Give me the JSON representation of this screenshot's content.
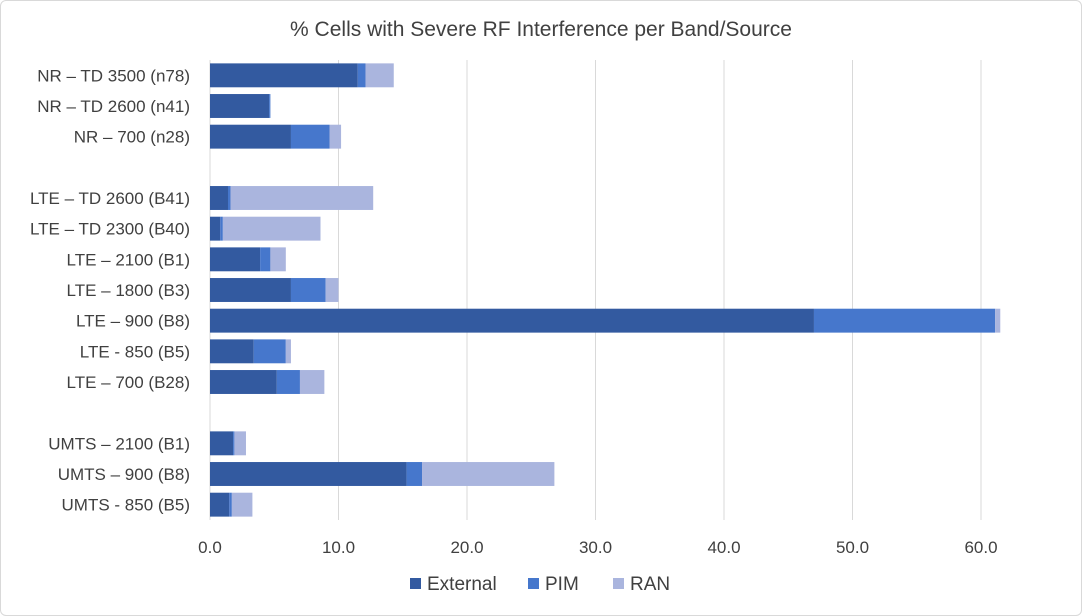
{
  "chart_data": {
    "type": "bar",
    "orientation": "horizontal",
    "stacked": true,
    "title": "% Cells with Severe RF Interference per Band/Source",
    "xlabel": "",
    "ylabel": "",
    "xlim": [
      0,
      60
    ],
    "x_ticks": [
      "0.0",
      "10.0",
      "20.0",
      "30.0",
      "40.0",
      "50.0",
      "60.0"
    ],
    "grid": "vertical",
    "legend_position": "bottom",
    "categories": [
      "NR – TD 3500 (n78)",
      "NR – TD 2600 (n41)",
      "NR –  700 (n28)",
      "",
      "LTE – TD 2600 (B41)",
      "LTE – TD 2300 (B40)",
      "LTE – 2100 (B1)",
      "LTE – 1800 (B3)",
      "LTE – 900 (B8)",
      "LTE - 850 (B5)",
      "LTE – 700 (B28)",
      "",
      "UMTS – 2100 (B1)",
      "UMTS – 900 (B8)",
      "UMTS - 850 (B5)"
    ],
    "series": [
      {
        "name": "External",
        "color": "#335aa0",
        "values": [
          11.5,
          4.6,
          6.3,
          null,
          1.4,
          0.8,
          3.9,
          6.3,
          47.0,
          3.4,
          5.2,
          null,
          1.8,
          15.3,
          1.5
        ]
      },
      {
        "name": "PIM",
        "color": "#4677cc",
        "values": [
          0.6,
          0.1,
          3.0,
          null,
          0.2,
          0.2,
          0.8,
          2.7,
          14.1,
          2.5,
          1.8,
          null,
          0.1,
          1.2,
          0.2
        ]
      },
      {
        "name": "RAN",
        "color": "#aab5de",
        "values": [
          2.2,
          0.0,
          0.9,
          null,
          11.1,
          7.6,
          1.2,
          1.0,
          0.4,
          0.4,
          1.9,
          null,
          0.9,
          10.3,
          1.6
        ]
      }
    ]
  }
}
